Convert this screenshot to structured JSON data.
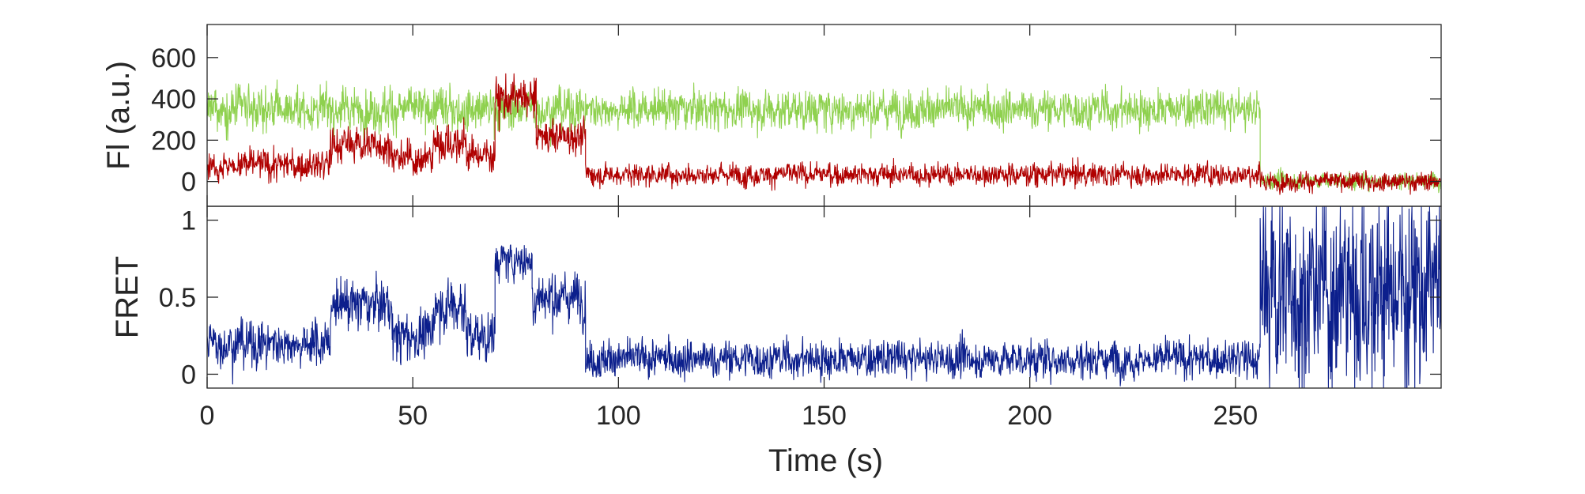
{
  "chart_data": [
    {
      "type": "line",
      "panel": "top",
      "ylabel": "Fl (a.u.)",
      "ylim": [
        -120,
        760
      ],
      "yticks": [
        0,
        200,
        400,
        600
      ],
      "ytick_labels": [
        "0",
        "200",
        "400",
        "600"
      ],
      "xlim": [
        0,
        300
      ],
      "sample_interval_s": 0.1,
      "grid": false,
      "series": [
        {
          "color": "#8fd14f",
          "segments": [
            {
              "x_range": [
                0,
                92
              ],
              "mean": 350,
              "noise": 75
            },
            {
              "x_range": [
                92,
                256
              ],
              "mean": 350,
              "noise": 70
            },
            {
              "x_range": [
                256,
                300
              ],
              "mean": 5,
              "noise": 30
            }
          ]
        },
        {
          "color": "#b00000",
          "segments": [
            {
              "x_range": [
                0,
                30
              ],
              "mean": 80,
              "noise": 55
            },
            {
              "x_range": [
                30,
                45
              ],
              "mean": 180,
              "noise": 65
            },
            {
              "x_range": [
                45,
                55
              ],
              "mean": 110,
              "noise": 60
            },
            {
              "x_range": [
                55,
                63
              ],
              "mean": 190,
              "noise": 70
            },
            {
              "x_range": [
                63,
                70
              ],
              "mean": 130,
              "noise": 60
            },
            {
              "x_range": [
                70,
                80
              ],
              "mean": 400,
              "noise": 80
            },
            {
              "x_range": [
                80,
                92
              ],
              "mean": 220,
              "noise": 60
            },
            {
              "x_range": [
                92,
                256
              ],
              "mean": 35,
              "noise": 40
            },
            {
              "x_range": [
                256,
                300
              ],
              "mean": 0,
              "noise": 32
            }
          ]
        }
      ]
    },
    {
      "type": "line",
      "panel": "bottom",
      "ylabel": "FRET",
      "xlabel": "Time (s)",
      "ylim": [
        -0.09,
        1.09
      ],
      "yticks": [
        0,
        0.5,
        1
      ],
      "ytick_labels": [
        "0",
        "0.5",
        "1"
      ],
      "xlim": [
        0,
        300
      ],
      "xticks": [
        0,
        50,
        100,
        150,
        200,
        250
      ],
      "xtick_labels": [
        "0",
        "50",
        "100",
        "150",
        "200",
        "250"
      ],
      "sample_interval_s": 0.1,
      "grid": false,
      "series": [
        {
          "color": "#0c1f8c",
          "segments": [
            {
              "x_range": [
                0,
                30
              ],
              "mean": 0.2,
              "noise": 0.11
            },
            {
              "x_range": [
                30,
                45
              ],
              "mean": 0.45,
              "noise": 0.12
            },
            {
              "x_range": [
                45,
                55
              ],
              "mean": 0.25,
              "noise": 0.12
            },
            {
              "x_range": [
                55,
                63
              ],
              "mean": 0.45,
              "noise": 0.13
            },
            {
              "x_range": [
                63,
                70
              ],
              "mean": 0.25,
              "noise": 0.12
            },
            {
              "x_range": [
                70,
                79
              ],
              "mean": 0.74,
              "noise": 0.09
            },
            {
              "x_range": [
                79,
                92
              ],
              "mean": 0.5,
              "noise": 0.12
            },
            {
              "x_range": [
                92,
                256
              ],
              "mean": 0.1,
              "noise": 0.09
            },
            {
              "x_range": [
                256,
                300
              ],
              "mean": 0.55,
              "noise": 0.5
            }
          ]
        }
      ]
    }
  ]
}
